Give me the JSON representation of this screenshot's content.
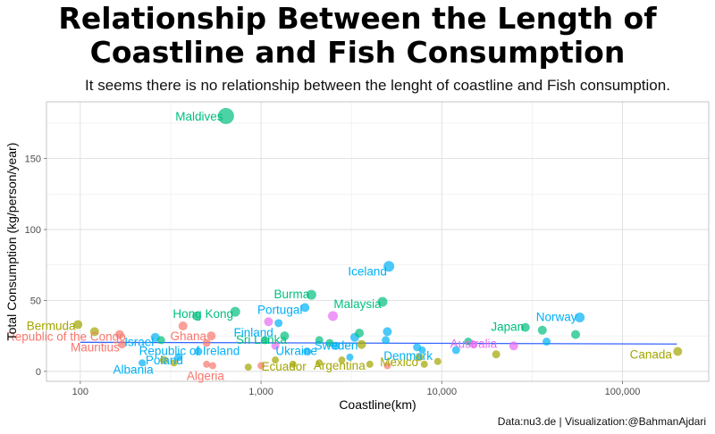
{
  "chart_data": {
    "type": "scatter",
    "title_line1": "Relationship Between the Length of",
    "title_line2": "Coastline and Fish Consumption",
    "subtitle": "It seems there is no relationship between the lenght of coastline and Fish consumption.",
    "caption": "Data:nu3.de | Visualization:@BahmanAjdari",
    "xlabel": "Coastline(km)",
    "ylabel": "Total Consumption (kg/person/year)",
    "xscale": "log10",
    "xlim": [
      65,
      300000
    ],
    "ylim": [
      -7,
      190
    ],
    "x_ticks": [
      {
        "value": 100,
        "label": "100"
      },
      {
        "value": 1000,
        "label": "1,000"
      },
      {
        "value": 10000,
        "label": "10,000"
      },
      {
        "value": 100000,
        "label": "100,000"
      }
    ],
    "y_ticks": [
      {
        "value": 0,
        "label": "0"
      },
      {
        "value": 50,
        "label": "50"
      },
      {
        "value": 100,
        "label": "100"
      },
      {
        "value": 150,
        "label": "150"
      }
    ],
    "grid": true,
    "legend": "none",
    "trend_line": {
      "x": [
        100,
        200000
      ],
      "y": [
        20.5,
        19.3
      ],
      "color": "#3366ff"
    },
    "group_colors": [
      "#f8766d",
      "#a3a500",
      "#00bf7d",
      "#00b0f6",
      "#e76bf3"
    ],
    "points": [
      {
        "x": 640,
        "y": 180,
        "g": 2,
        "s": 9,
        "label": "Maldives",
        "ldx": -30,
        "ldy": 1
      },
      {
        "x": 5100,
        "y": 74,
        "g": 3,
        "s": 6,
        "label": "Iceland",
        "ldx": -24,
        "ldy": 6
      },
      {
        "x": 1900,
        "y": 54,
        "g": 2,
        "s": 5.5,
        "label": "Burma",
        "ldx": -22,
        "ldy": 0
      },
      {
        "x": 1750,
        "y": 45,
        "g": 3,
        "s": 5,
        "label": "Portugal",
        "ldx": -28,
        "ldy": 3
      },
      {
        "x": 4700,
        "y": 49,
        "g": 2,
        "s": 5.5,
        "label": "Malaysia",
        "ldx": -28,
        "ldy": 3
      },
      {
        "x": 2500,
        "y": 39,
        "g": 4,
        "s": 5.5
      },
      {
        "x": 720,
        "y": 42,
        "g": 2,
        "s": 5.5,
        "label": "Hong Kong",
        "ldx": -36,
        "ldy": 3
      },
      {
        "x": 1100,
        "y": 35,
        "g": 4,
        "s": 5
      },
      {
        "x": 1250,
        "y": 34,
        "g": 3,
        "s": 4.5,
        "label": "Finland",
        "ldx": -28,
        "ldy": 11
      },
      {
        "x": 440,
        "y": 39,
        "g": 2,
        "s": 5
      },
      {
        "x": 370,
        "y": 32,
        "g": 0,
        "s": 5,
        "label": "Ghana",
        "ldx": 6,
        "ldy": 12
      },
      {
        "x": 97,
        "y": 33,
        "g": 1,
        "s": 5,
        "label": "Bermuda",
        "ldx": -30,
        "ldy": 2
      },
      {
        "x": 120,
        "y": 28,
        "g": 1,
        "s": 5
      },
      {
        "x": 165,
        "y": 26,
        "g": 0,
        "s": 5,
        "label": "Republic of the Congo",
        "ldx": -60,
        "ldy": 3
      },
      {
        "x": 170,
        "y": 19,
        "g": 0,
        "s": 4.5,
        "label": "Mauritius",
        "ldx": -30,
        "ldy": 4
      },
      {
        "x": 260,
        "y": 24,
        "g": 3,
        "s": 5,
        "label": "Israel",
        "ldx": -18,
        "ldy": 6
      },
      {
        "x": 280,
        "y": 22,
        "g": 2,
        "s": 4.5
      },
      {
        "x": 530,
        "y": 25,
        "g": 0,
        "s": 5
      },
      {
        "x": 500,
        "y": 20,
        "g": 0,
        "s": 4.5
      },
      {
        "x": 1050,
        "y": 22,
        "g": 2,
        "s": 4.5,
        "label": "Sri Lanka",
        "ldx": -4,
        "ldy": 0
      },
      {
        "x": 1200,
        "y": 18,
        "g": 4,
        "s": 4.5
      },
      {
        "x": 1350,
        "y": 25,
        "g": 2,
        "s": 5
      },
      {
        "x": 2100,
        "y": 22,
        "g": 2,
        "s": 4.5
      },
      {
        "x": 2400,
        "y": 20,
        "g": 2,
        "s": 4.5
      },
      {
        "x": 2600,
        "y": 18,
        "g": 3,
        "s": 4.5,
        "label": "Sweden",
        "ldx": 0,
        "ldy": 0
      },
      {
        "x": 3300,
        "y": 24,
        "g": 3,
        "s": 5
      },
      {
        "x": 3500,
        "y": 27,
        "g": 2,
        "s": 5
      },
      {
        "x": 3600,
        "y": 19,
        "g": 1,
        "s": 5
      },
      {
        "x": 4900,
        "y": 22,
        "g": 3,
        "s": 4.5
      },
      {
        "x": 5000,
        "y": 28,
        "g": 3,
        "s": 5
      },
      {
        "x": 7300,
        "y": 17,
        "g": 3,
        "s": 4.5,
        "label": "Denmark",
        "ldx": -10,
        "ldy": 10
      },
      {
        "x": 7800,
        "y": 15,
        "g": 3,
        "s": 4
      },
      {
        "x": 12000,
        "y": 15,
        "g": 3,
        "s": 4.5
      },
      {
        "x": 14000,
        "y": 21,
        "g": 2,
        "s": 4.5
      },
      {
        "x": 15000,
        "y": 19,
        "g": 4,
        "s": 4.5,
        "label": "Australia",
        "ldx": 0,
        "ldy": 0
      },
      {
        "x": 20000,
        "y": 12,
        "g": 1,
        "s": 4.5
      },
      {
        "x": 25000,
        "y": 18,
        "g": 4,
        "s": 5
      },
      {
        "x": 29000,
        "y": 31,
        "g": 2,
        "s": 5,
        "label": "Japan",
        "ldx": -20,
        "ldy": 0
      },
      {
        "x": 36000,
        "y": 29,
        "g": 2,
        "s": 5
      },
      {
        "x": 38000,
        "y": 21,
        "g": 3,
        "s": 4.5
      },
      {
        "x": 55000,
        "y": 26,
        "g": 2,
        "s": 5
      },
      {
        "x": 58000,
        "y": 38,
        "g": 3,
        "s": 5.5,
        "label": "Norway",
        "ldx": -26,
        "ldy": 0
      },
      {
        "x": 202000,
        "y": 14,
        "g": 1,
        "s": 5,
        "label": "Canada",
        "ldx": -30,
        "ldy": 4
      },
      {
        "x": 450,
        "y": 14,
        "g": 3,
        "s": 4.5,
        "label": "Republic of Ireland",
        "ldx": -10,
        "ldy": 0
      },
      {
        "x": 350,
        "y": 10,
        "g": 3,
        "s": 4.5,
        "label": "Poland",
        "ldx": -16,
        "ldy": 4
      },
      {
        "x": 220,
        "y": 6,
        "g": 3,
        "s": 4,
        "label": "Albania",
        "ldx": -10,
        "ldy": 8
      },
      {
        "x": 290,
        "y": 8,
        "g": 1,
        "s": 4.5
      },
      {
        "x": 330,
        "y": 6,
        "g": 1,
        "s": 4
      },
      {
        "x": 500,
        "y": 5,
        "g": 0,
        "s": 4
      },
      {
        "x": 540,
        "y": 4,
        "g": 0,
        "s": 4,
        "label": "Algeria",
        "ldx": -8,
        "ldy": 12
      },
      {
        "x": 850,
        "y": 3,
        "g": 1,
        "s": 4
      },
      {
        "x": 1000,
        "y": 4,
        "g": 0,
        "s": 4
      },
      {
        "x": 1200,
        "y": 8,
        "g": 1,
        "s": 4
      },
      {
        "x": 1500,
        "y": 5,
        "g": 1,
        "s": 4,
        "label": "Ecuador",
        "ldx": -10,
        "ldy": 3
      },
      {
        "x": 1800,
        "y": 14,
        "g": 3,
        "s": 4.5,
        "label": "Ukraine",
        "ldx": -12,
        "ldy": 0
      },
      {
        "x": 2100,
        "y": 6,
        "g": 1,
        "s": 4
      },
      {
        "x": 2800,
        "y": 8,
        "g": 1,
        "s": 4
      },
      {
        "x": 3100,
        "y": 10,
        "g": 3,
        "s": 4
      },
      {
        "x": 4000,
        "y": 5,
        "g": 1,
        "s": 4,
        "label": "Argentina",
        "ldx": -34,
        "ldy": 2
      },
      {
        "x": 5000,
        "y": 4,
        "g": 0,
        "s": 4
      },
      {
        "x": 7500,
        "y": 10,
        "g": 1,
        "s": 4.5
      },
      {
        "x": 8000,
        "y": 5,
        "g": 1,
        "s": 4,
        "label": "Mexico",
        "ldx": -28,
        "ldy": -2
      },
      {
        "x": 9500,
        "y": 7,
        "g": 1,
        "s": 4
      }
    ]
  }
}
